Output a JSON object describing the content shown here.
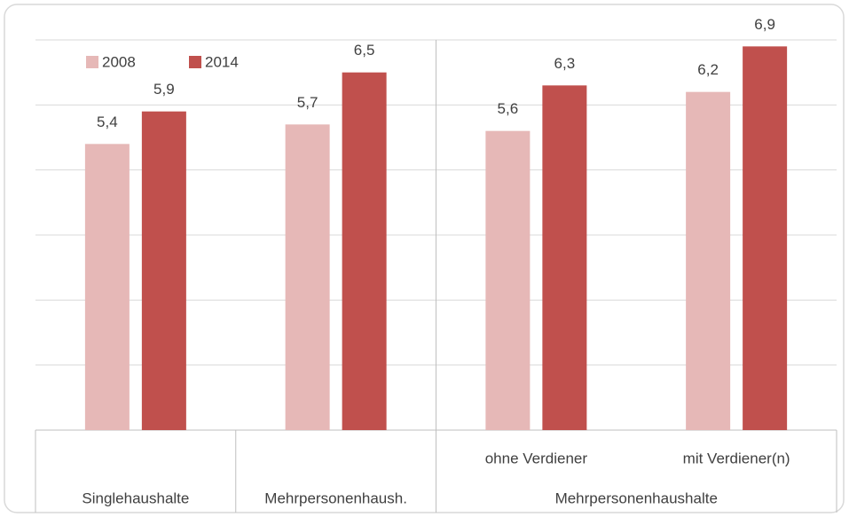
{
  "chart_data": {
    "type": "bar",
    "categories": [
      null,
      null,
      "ohne Verdiener",
      "mit Verdiener(n)"
    ],
    "groups": [
      {
        "label": "Singlehaushalte",
        "size": 1
      },
      {
        "label": "Mehrpersonenhaush.",
        "size": 1
      },
      {
        "label": "Mehrpersonenhaushalte",
        "size": 2
      }
    ],
    "series": [
      {
        "name": "2008",
        "color": "#e6b8b7",
        "values": [
          5.4,
          5.7,
          5.6,
          6.2
        ],
        "value_labels": [
          "5,4",
          "5,7",
          "5,6",
          "6,2"
        ]
      },
      {
        "name": "2014",
        "color": "#c0504d",
        "values": [
          5.9,
          6.5,
          6.3,
          6.9
        ],
        "value_labels": [
          "5,9",
          "6,5",
          "6,3",
          "6,9"
        ]
      }
    ],
    "ylim": [
      1,
      7
    ],
    "yticks": [
      1,
      2,
      3,
      4,
      5,
      6,
      7
    ],
    "grid": true,
    "legend": "top-left"
  }
}
